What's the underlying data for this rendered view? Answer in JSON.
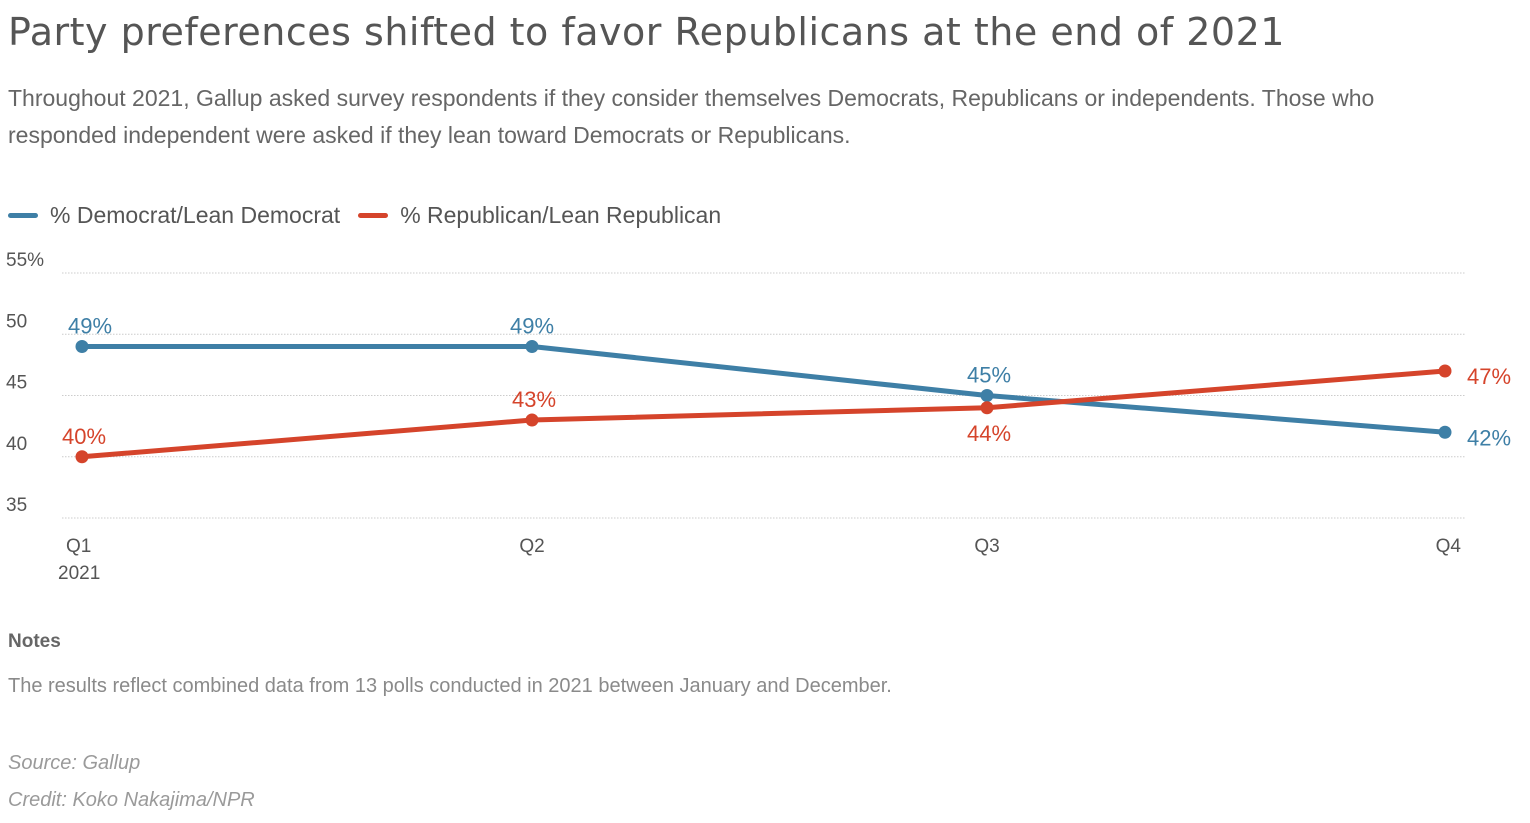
{
  "title": "Party preferences shifted to favor Republicans at the end of 2021",
  "subtitle": "Throughout 2021, Gallup asked survey respondents if they consider themselves Democrats, Republicans or independents. Those who responded independent were asked if they lean toward Democrats or Republicans.",
  "legend": [
    {
      "label": "% Democrat/Lean Democrat",
      "color": "#3e7fa6"
    },
    {
      "label": "% Republican/Lean Republican",
      "color": "#d5442b"
    }
  ],
  "chart_data": {
    "type": "line",
    "categories": [
      "Q1",
      "Q2",
      "Q3",
      "Q4"
    ],
    "category_sublabels": [
      "2021",
      "",
      "",
      ""
    ],
    "y_ticks": [
      "55%",
      "50",
      "45",
      "40",
      "35"
    ],
    "ylim": [
      35,
      55
    ],
    "grid": true,
    "legend_position": "top-left",
    "series": [
      {
        "name": "% Democrat/Lean Democrat",
        "color": "#3e7fa6",
        "values": [
          49,
          49,
          45,
          42
        ],
        "labels": [
          "49%",
          "49%",
          "45%",
          "42%"
        ]
      },
      {
        "name": "% Republican/Lean Republican",
        "color": "#d5442b",
        "values": [
          40,
          43,
          44,
          47
        ],
        "labels": [
          "40%",
          "43%",
          "44%",
          "47%"
        ]
      }
    ]
  },
  "notes": {
    "heading": "Notes",
    "text": "The results reflect combined data from 13 polls conducted in 2021 between January and December."
  },
  "source": "Source: Gallup",
  "credit": "Credit: Koko Nakajima/NPR"
}
